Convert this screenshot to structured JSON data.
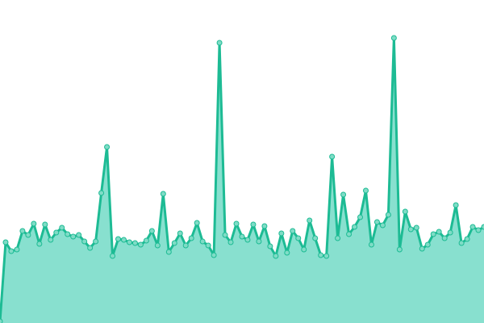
{
  "chart_data": {
    "type": "area",
    "title": "",
    "xlabel": "",
    "ylabel": "",
    "ylim": [
      0,
      100
    ],
    "grid": false,
    "legend": "none",
    "colors": {
      "line": "#1dbb94",
      "fill": "#88e0cf",
      "point_fill": "#7fdcc6",
      "point_stroke": "#1dbb94"
    },
    "values": [
      0.5,
      25,
      22.25,
      22.75,
      28.5,
      27.25,
      30.75,
      24.5,
      30.5,
      25.75,
      28,
      29.5,
      27.5,
      26.75,
      27.25,
      25.25,
      23.25,
      25.25,
      40.25,
      54.5,
      20.75,
      26,
      25.75,
      25,
      24.75,
      24.25,
      25.5,
      28.5,
      24,
      40,
      22,
      24.75,
      27.75,
      24,
      26.25,
      31,
      25.25,
      24,
      21,
      86.75,
      27.25,
      25,
      30.75,
      26.75,
      25.75,
      30.5,
      25.25,
      30,
      23.75,
      20.75,
      27.75,
      21.75,
      28.5,
      26.25,
      22.75,
      31.75,
      26.25,
      21,
      20.75,
      51.5,
      26.25,
      39.75,
      27.5,
      29.75,
      32.75,
      41,
      24.25,
      31.25,
      30.25,
      33.5,
      88.25,
      22.75,
      34.5,
      29,
      29.5,
      23,
      24.25,
      27.5,
      28.25,
      26.25,
      28,
      36.5,
      24.75,
      26,
      29.75,
      28.75,
      29.75
    ]
  }
}
